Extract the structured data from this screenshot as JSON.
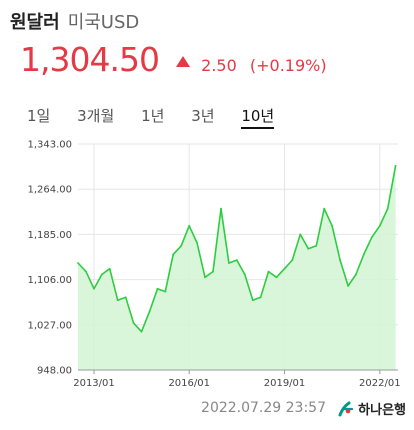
{
  "header": {
    "title": "원달러",
    "subtitle": "미국USD"
  },
  "quote": {
    "rate": "1,304.50",
    "change": "2.50",
    "change_pct": "(+0.19%)"
  },
  "tabs": [
    {
      "label": "1일",
      "active": false
    },
    {
      "label": "3개월",
      "active": false
    },
    {
      "label": "1년",
      "active": false
    },
    {
      "label": "3년",
      "active": false
    },
    {
      "label": "10년",
      "active": true
    }
  ],
  "colors": {
    "up": "#e63946",
    "line": "#2ecc40",
    "fill": "#d4f5d4"
  },
  "chart_data": {
    "type": "area",
    "series": [
      {
        "x": [
          "2012-07",
          "2012-10",
          "2013-01",
          "2013-04",
          "2013-07",
          "2013-10",
          "2014-01",
          "2014-04",
          "2014-07",
          "2014-10",
          "2015-01",
          "2015-04",
          "2015-07",
          "2015-10",
          "2016-01",
          "2016-04",
          "2016-07",
          "2016-10",
          "2017-01",
          "2017-04",
          "2017-07",
          "2017-10",
          "2018-01",
          "2018-04",
          "2018-07",
          "2018-10",
          "2019-01",
          "2019-04",
          "2019-07",
          "2019-10",
          "2020-01",
          "2020-04",
          "2020-07",
          "2020-10",
          "2021-01",
          "2021-04",
          "2021-07",
          "2021-10",
          "2022-01",
          "2022-04",
          "2022-07"
        ],
        "values": [
          1135,
          1120,
          1090,
          1115,
          1125,
          1070,
          1075,
          1030,
          1015,
          1050,
          1090,
          1085,
          1150,
          1165,
          1200,
          1170,
          1110,
          1120,
          1230,
          1135,
          1140,
          1115,
          1070,
          1075,
          1120,
          1110,
          1125,
          1140,
          1185,
          1160,
          1165,
          1230,
          1200,
          1140,
          1095,
          1115,
          1150,
          1180,
          1200,
          1230,
          1305
        ]
      }
    ],
    "x_ticks": [
      "2013/01",
      "2016/01",
      "2019/01",
      "2022/01"
    ],
    "y_ticks": [
      "1,343.00",
      "1,264.00",
      "1,185.00",
      "1,106.00",
      "1,027.00",
      "948.00"
    ],
    "ylim": [
      948,
      1343
    ]
  },
  "footer": {
    "timestamp": "2022.07.29 23:57",
    "brand": "하나은행"
  }
}
